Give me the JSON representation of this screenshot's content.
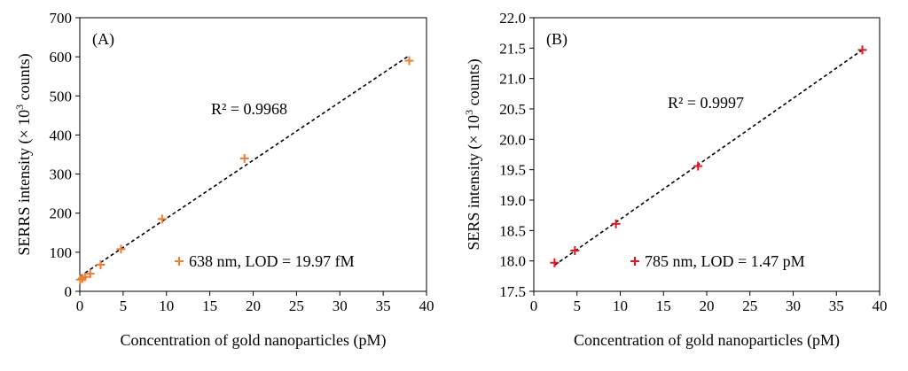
{
  "chart_data": [
    {
      "type": "scatter",
      "panel_label": "(A)",
      "xlabel": "Concentration of gold nanoparticles (pM)",
      "ylabel": "SERRS intensity (× 10",
      "ylabel_sup": "3",
      "ylabel_suffix": " counts)",
      "xlim": [
        0,
        40
      ],
      "ylim": [
        0,
        700
      ],
      "xticks": [
        0,
        5,
        10,
        15,
        20,
        25,
        30,
        35,
        40
      ],
      "yticks": [
        0,
        100,
        200,
        300,
        400,
        500,
        600,
        700
      ],
      "ytick_decimals": 0,
      "grid": false,
      "series": [
        {
          "name": "638 nm, LOD = 19.97 fM",
          "color": "#ED7D31",
          "marker": "plus",
          "x": [
            0.06,
            0.3,
            0.6,
            1.2,
            2.4,
            4.75,
            9.5,
            19.0,
            38.0
          ],
          "y": [
            30,
            33,
            37,
            45,
            68,
            108,
            185,
            340,
            590
          ]
        }
      ],
      "trendline": {
        "x": [
          0,
          38.0
        ],
        "y": [
          38,
          603
        ],
        "style": "dashed",
        "color": "#000000"
      },
      "annotation": "R² = 0.9968",
      "legend_position": "bottom-right"
    },
    {
      "type": "scatter",
      "panel_label": "(B)",
      "xlabel": "Concentration of gold nanoparticles (pM)",
      "ylabel": "SERS intensity (× 10",
      "ylabel_sup": "3",
      "ylabel_suffix": " counts)",
      "xlim": [
        0,
        40
      ],
      "ylim": [
        17.5,
        22.0
      ],
      "xticks": [
        0,
        5,
        10,
        15,
        20,
        25,
        30,
        35,
        40
      ],
      "yticks": [
        17.5,
        18.0,
        18.5,
        19.0,
        19.5,
        20.0,
        20.5,
        21.0,
        21.5,
        22.0
      ],
      "ytick_decimals": 1,
      "grid": false,
      "series": [
        {
          "name": "785 nm, LOD = 1.47 pM",
          "color": "#E8141E",
          "marker": "plus",
          "x": [
            2.4,
            4.75,
            9.5,
            19.0,
            38.0
          ],
          "y": [
            17.97,
            18.17,
            18.61,
            19.56,
            21.47
          ]
        }
      ],
      "trendline": {
        "x": [
          2.4,
          38.0
        ],
        "y": [
          17.93,
          21.47
        ],
        "style": "dashed",
        "color": "#000000"
      },
      "annotation": "R² = 0.9997",
      "legend_position": "bottom-right"
    }
  ]
}
